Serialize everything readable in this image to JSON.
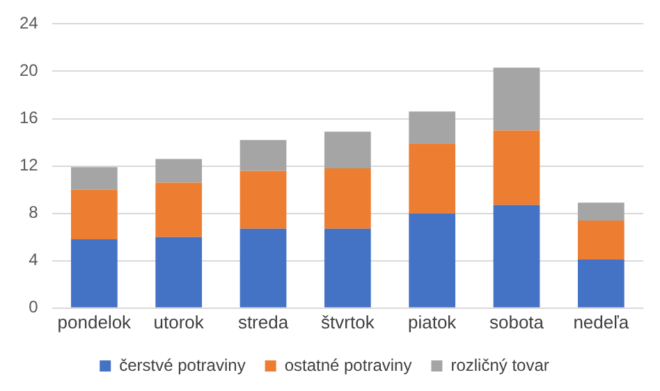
{
  "chart_data": {
    "type": "bar",
    "stacked": true,
    "categories": [
      "pondelok",
      "utorok",
      "streda",
      "štvrtok",
      "piatok",
      "sobota",
      "nedeľa"
    ],
    "series": [
      {
        "name": "čerstvé potraviny",
        "color": "#4472c4",
        "values": [
          5.8,
          6.0,
          6.7,
          6.7,
          8.0,
          8.7,
          4.1
        ]
      },
      {
        "name": "ostatné potraviny",
        "color": "#ed7d31",
        "values": [
          4.2,
          4.6,
          4.9,
          5.1,
          5.9,
          6.3,
          3.3
        ]
      },
      {
        "name": "rozličný tovar",
        "color": "#a5a5a5",
        "values": [
          1.9,
          2.0,
          2.6,
          3.1,
          2.7,
          5.3,
          1.5
        ]
      }
    ],
    "ylim": [
      0,
      24
    ],
    "yticks": [
      0,
      4,
      8,
      12,
      16,
      20,
      24
    ],
    "grid": "y",
    "legend": "bottom"
  }
}
